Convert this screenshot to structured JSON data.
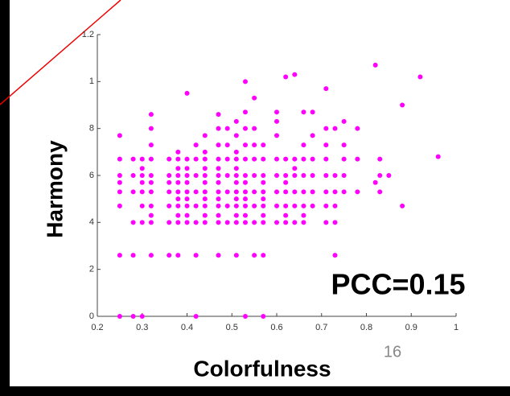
{
  "chart_data": {
    "type": "scatter",
    "ylabel": "Harmony",
    "xlabel": "Colorfulness",
    "annotation": "PCC=0.15",
    "page_number": "16",
    "color": "#ff00ff",
    "xlim": [
      0.2,
      1
    ],
    "ylim": [
      0,
      1.2
    ],
    "xticks": [
      0.2,
      0.3,
      0.4,
      0.5,
      0.6,
      0.7,
      0.8,
      0.9,
      1
    ],
    "yticks": [
      0,
      {
        "value": 0.2,
        "label": "2"
      },
      {
        "value": 0.4,
        "label": "4"
      },
      {
        "value": 0.6,
        "label": "6"
      },
      {
        "value": 0.8,
        "label": "8"
      },
      1,
      1.2
    ],
    "x": [
      0.25,
      0.25,
      0.25,
      0.25,
      0.25,
      0.25,
      0.25,
      0.25,
      0.28,
      0.28,
      0.28,
      0.28,
      0.28,
      0.28,
      0.3,
      0.3,
      0.3,
      0.3,
      0.3,
      0.3,
      0.3,
      0.3,
      0.32,
      0.32,
      0.32,
      0.32,
      0.32,
      0.32,
      0.32,
      0.32,
      0.32,
      0.32,
      0.32,
      0.36,
      0.36,
      0.36,
      0.36,
      0.36,
      0.36,
      0.36,
      0.38,
      0.38,
      0.38,
      0.38,
      0.38,
      0.38,
      0.38,
      0.38,
      0.38,
      0.38,
      0.38,
      0.4,
      0.4,
      0.4,
      0.4,
      0.4,
      0.4,
      0.4,
      0.4,
      0.4,
      0.4,
      0.42,
      0.42,
      0.42,
      0.42,
      0.42,
      0.42,
      0.42,
      0.42,
      0.44,
      0.44,
      0.44,
      0.44,
      0.44,
      0.44,
      0.44,
      0.44,
      0.44,
      0.44,
      0.44,
      0.47,
      0.47,
      0.47,
      0.47,
      0.47,
      0.47,
      0.47,
      0.47,
      0.47,
      0.47,
      0.47,
      0.47,
      0.47,
      0.49,
      0.49,
      0.49,
      0.49,
      0.49,
      0.49,
      0.49,
      0.51,
      0.51,
      0.51,
      0.51,
      0.51,
      0.51,
      0.51,
      0.51,
      0.51,
      0.51,
      0.51,
      0.51,
      0.51,
      0.53,
      0.53,
      0.53,
      0.53,
      0.53,
      0.53,
      0.53,
      0.53,
      0.53,
      0.53,
      0.53,
      0.53,
      0.53,
      0.55,
      0.55,
      0.55,
      0.55,
      0.55,
      0.55,
      0.55,
      0.55,
      0.55,
      0.57,
      0.57,
      0.57,
      0.57,
      0.57,
      0.57,
      0.57,
      0.57,
      0.57,
      0.57,
      0.57,
      0.6,
      0.6,
      0.6,
      0.6,
      0.6,
      0.6,
      0.6,
      0.6,
      0.62,
      0.62,
      0.62,
      0.62,
      0.62,
      0.62,
      0.62,
      0.62,
      0.64,
      0.64,
      0.64,
      0.64,
      0.64,
      0.64,
      0.64,
      0.66,
      0.66,
      0.66,
      0.66,
      0.66,
      0.66,
      0.66,
      0.66,
      0.68,
      0.68,
      0.68,
      0.68,
      0.68,
      0.68,
      0.71,
      0.71,
      0.71,
      0.71,
      0.71,
      0.71,
      0.71,
      0.71,
      0.73,
      0.73,
      0.73,
      0.73,
      0.73,
      0.73,
      0.75,
      0.75,
      0.75,
      0.75,
      0.75,
      0.78,
      0.78,
      0.78,
      0.82,
      0.82,
      0.83,
      0.83,
      0.83,
      0.85,
      0.88,
      0.88,
      0.92,
      0.96
    ],
    "values": [
      0,
      0.26,
      0.47,
      0.53,
      0.57,
      0.6,
      0.67,
      0.77,
      0,
      0.26,
      0.4,
      0.53,
      0.6,
      0.67,
      0,
      0.4,
      0.47,
      0.53,
      0.57,
      0.6,
      0.63,
      0.67,
      0.26,
      0.4,
      0.43,
      0.47,
      0.53,
      0.57,
      0.6,
      0.67,
      0.73,
      0.8,
      0.86,
      0.26,
      0.4,
      0.47,
      0.53,
      0.57,
      0.6,
      0.67,
      0.26,
      0.4,
      0.43,
      0.47,
      0.5,
      0.53,
      0.57,
      0.6,
      0.63,
      0.67,
      0.7,
      0.4,
      0.43,
      0.47,
      0.5,
      0.53,
      0.57,
      0.6,
      0.63,
      0.67,
      0.95,
      0,
      0.26,
      0.4,
      0.47,
      0.53,
      0.6,
      0.67,
      0.73,
      0.4,
      0.43,
      0.47,
      0.5,
      0.53,
      0.57,
      0.6,
      0.63,
      0.67,
      0.7,
      0.77,
      0.26,
      0.4,
      0.43,
      0.47,
      0.5,
      0.53,
      0.57,
      0.6,
      0.63,
      0.67,
      0.73,
      0.8,
      0.86,
      0.4,
      0.47,
      0.53,
      0.6,
      0.67,
      0.73,
      0.8,
      0.26,
      0.4,
      0.43,
      0.47,
      0.5,
      0.53,
      0.57,
      0.6,
      0.63,
      0.67,
      0.7,
      0.77,
      0.83,
      0,
      0.4,
      0.43,
      0.47,
      0.5,
      0.53,
      0.57,
      0.6,
      0.67,
      0.73,
      0.8,
      0.87,
      1.0,
      0.26,
      0.4,
      0.47,
      0.53,
      0.6,
      0.67,
      0.73,
      0.8,
      0.93,
      0,
      0.26,
      0.4,
      0.43,
      0.47,
      0.5,
      0.53,
      0.57,
      0.6,
      0.67,
      0.73,
      0.4,
      0.47,
      0.53,
      0.6,
      0.67,
      0.77,
      0.83,
      0.87,
      0.4,
      0.43,
      0.47,
      0.53,
      0.57,
      0.6,
      0.67,
      1.02,
      0.4,
      0.47,
      0.53,
      0.6,
      0.63,
      0.67,
      1.03,
      0.4,
      0.43,
      0.47,
      0.53,
      0.6,
      0.67,
      0.73,
      0.87,
      0.47,
      0.53,
      0.6,
      0.67,
      0.77,
      0.87,
      0.4,
      0.47,
      0.53,
      0.6,
      0.67,
      0.73,
      0.8,
      0.97,
      0.26,
      0.4,
      0.47,
      0.53,
      0.6,
      0.8,
      0.53,
      0.6,
      0.67,
      0.73,
      0.83,
      0.53,
      0.67,
      0.8,
      0.57,
      1.07,
      0.53,
      0.6,
      0.67,
      0.6,
      0.47,
      0.9,
      1.02,
      0.68
    ]
  }
}
